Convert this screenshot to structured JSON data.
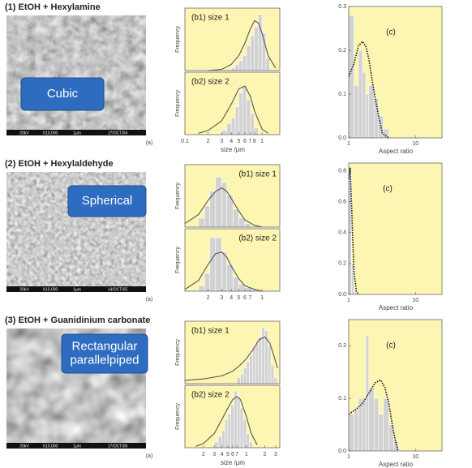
{
  "figure": {
    "bar_color": "#d2d2d2",
    "background": "#fdf6b3",
    "fit_color": "#555555",
    "label_color": "#2e6cc0",
    "rows": [
      {
        "heading": "(1) EtOH + Hexylamine",
        "image": {
          "label_lines": [
            "Cubic"
          ],
          "footer": [
            "20kV",
            "X10,000",
            "1μm",
            "17/OCT/04"
          ]
        },
        "tag": "(a)",
        "size": {
          "xlim": [
            0.1,
            1.7
          ],
          "x_label": "size /μm",
          "xticks": [
            0.1,
            {
              "value": 0.2,
              "label": "2"
            },
            {
              "value": 0.3,
              "label": "3"
            },
            {
              "value": 0.4,
              "label": "4"
            },
            {
              "value": 0.5,
              "label": "5"
            },
            {
              "value": 0.6,
              "label": "6"
            },
            {
              "value": 0.7,
              "label": "7"
            },
            {
              "value": 0.8,
              "label": "8"
            },
            1
          ],
          "y_label": "Frequency",
          "plots": [
            {
              "label": "(b1) size 1",
              "ylim": [
                0,
                0.5
              ],
              "bins": [
                0.4,
                0.45,
                0.5,
                0.56,
                0.63,
                0.71,
                0.79,
                0.89,
                1.0,
                1.12,
                1.26
              ],
              "counts": [
                0.02,
                0.05,
                0.08,
                0.12,
                0.2,
                0.28,
                0.35,
                0.45,
                0.3,
                0.1
              ],
              "fit": {
                "x": [
                  0.2,
                  0.3,
                  0.4,
                  0.5,
                  0.6,
                  0.7,
                  0.8,
                  0.9,
                  1.0,
                  1.2,
                  1.5
                ],
                "y": [
                  0,
                  0.01,
                  0.05,
                  0.12,
                  0.22,
                  0.33,
                  0.4,
                  0.38,
                  0.3,
                  0.12,
                  0.02
                ]
              }
            },
            {
              "label": "(b2) size 2",
              "ylim": [
                0,
                0.45
              ],
              "bins": [
                0.3,
                0.35,
                0.4,
                0.45,
                0.5,
                0.56,
                0.63,
                0.71,
                0.79,
                0.89
              ],
              "counts": [
                0.03,
                0.08,
                0.12,
                0.2,
                0.3,
                0.35,
                0.25,
                0.15,
                0.05
              ],
              "fit": {
                "x": [
                  0.15,
                  0.2,
                  0.3,
                  0.4,
                  0.5,
                  0.6,
                  0.7,
                  0.8,
                  1.0,
                  1.2
                ],
                "y": [
                  0.01,
                  0.03,
                  0.1,
                  0.22,
                  0.33,
                  0.35,
                  0.28,
                  0.17,
                  0.04,
                  0.01
                ]
              }
            }
          ]
        },
        "aspect": {
          "tag": "(c)",
          "x_label": "Aspect ratio",
          "xlim": [
            1,
            25
          ],
          "xticks": [
            1,
            10
          ],
          "ylim": [
            0,
            0.3
          ],
          "yticks": [
            {
              "value": 0,
              "label": "0.0"
            },
            0.1,
            0.2,
            0.3
          ],
          "bins": [
            1,
            1.2,
            1.4,
            1.6,
            1.8,
            2,
            2.4,
            2.8,
            3.3,
            4
          ],
          "counts": [
            0.28,
            0.12,
            0.2,
            0.15,
            0.1,
            0.12,
            0.09,
            0.05,
            0.02
          ],
          "fit": {
            "x": [
              1,
              1.2,
              1.4,
              1.6,
              1.8,
              2,
              2.2,
              2.5,
              2.8,
              3.2,
              4
            ],
            "y": [
              0.14,
              0.17,
              0.21,
              0.22,
              0.21,
              0.18,
              0.14,
              0.09,
              0.05,
              0.01,
              0
            ]
          }
        }
      },
      {
        "heading": "(2) EtOH + Hexylaldehyde",
        "image": {
          "label_lines": [
            "Spherical"
          ],
          "footer": [
            "20kV",
            "X10,000",
            "1μm",
            "14/OCT/05"
          ]
        },
        "tag": "(a)",
        "size": {
          "xlim": [
            0.1,
            1.7
          ],
          "xticks": [
            {
              "value": 0.2,
              "label": "2"
            },
            {
              "value": 0.3,
              "label": "3"
            },
            {
              "value": 0.4,
              "label": "4"
            },
            {
              "value": 0.5,
              "label": "5"
            },
            {
              "value": 0.6,
              "label": "6"
            },
            {
              "value": 0.7,
              "label": "7"
            },
            1
          ],
          "y_label": "Frequency",
          "plots": [
            {
              "label": "(b1) size 1",
              "ylim": [
                0,
                0.35
              ],
              "bins": [
                0.15,
                0.18,
                0.21,
                0.25,
                0.3,
                0.35,
                0.42,
                0.5,
                0.6,
                0.71
              ],
              "counts": [
                0.05,
                0.12,
                0.2,
                0.28,
                0.25,
                0.18,
                0.1,
                0.05,
                0.02
              ],
              "fit": {
                "x": [
                  0.1,
                  0.15,
                  0.2,
                  0.25,
                  0.3,
                  0.35,
                  0.4,
                  0.5,
                  0.6,
                  0.8,
                  1.0
                ],
                "y": [
                  0.02,
                  0.07,
                  0.15,
                  0.2,
                  0.22,
                  0.2,
                  0.16,
                  0.09,
                  0.04,
                  0.01,
                  0
                ]
              }
            },
            {
              "label": "(b2) size 2",
              "ylim": [
                0,
                0.35
              ],
              "bins": [
                0.15,
                0.18,
                0.21,
                0.25,
                0.3,
                0.35,
                0.42,
                0.5,
                0.6,
                0.71,
                0.85
              ],
              "counts": [
                0.03,
                0.1,
                0.3,
                0.3,
                0.22,
                0.15,
                0.08,
                0.04,
                0.02,
                0.01
              ],
              "fit": {
                "x": [
                  0.1,
                  0.15,
                  0.2,
                  0.25,
                  0.3,
                  0.35,
                  0.4,
                  0.5,
                  0.6,
                  0.8,
                  1.0
                ],
                "y": [
                  0.01,
                  0.06,
                  0.15,
                  0.21,
                  0.22,
                  0.19,
                  0.14,
                  0.07,
                  0.03,
                  0.01,
                  0
                ]
              }
            }
          ]
        },
        "aspect": {
          "tag": "(c)",
          "x_label": "Aspect ratio",
          "xlim": [
            1,
            25
          ],
          "xticks": [
            1,
            10
          ],
          "ylim": [
            0,
            0.85
          ],
          "yticks": [
            {
              "value": 0,
              "label": "0.0"
            },
            0.2,
            0.4,
            0.6,
            0.8
          ],
          "bins": [
            1,
            1.1,
            1.2,
            1.3
          ],
          "counts": [
            0.8,
            0.2,
            0.02
          ],
          "fit": {
            "x": [
              1,
              1.05,
              1.1,
              1.15,
              1.2,
              1.3,
              1.4
            ],
            "y": [
              0.75,
              0.82,
              0.6,
              0.35,
              0.15,
              0.02,
              0
            ]
          }
        }
      },
      {
        "heading": "(3) EtOH + Guanidinium carbonate",
        "image": {
          "label_lines": [
            "Rectangular",
            "parallelpiped"
          ],
          "footer": [
            "20kV",
            "X10,000",
            "1μm",
            "17/OCT/06"
          ]
        },
        "tag": "(a)",
        "size": {
          "xlim": [
            0.1,
            3.5
          ],
          "x_label": "size /μm",
          "xticks": [
            {
              "value": 0.2,
              "label": "2"
            },
            {
              "value": 0.3,
              "label": "3"
            },
            {
              "value": 0.4,
              "label": "4"
            },
            {
              "value": 0.5,
              "label": "5"
            },
            {
              "value": 0.6,
              "label": "6"
            },
            {
              "value": 0.7,
              "label": "7"
            },
            1,
            {
              "value": 2,
              "label": "2"
            },
            {
              "value": 3,
              "label": "3"
            }
          ],
          "y_label": "Frequency",
          "plots": [
            {
              "label": "(b1) size 1",
              "ylim": [
                0,
                0.2
              ],
              "bins": [
                0.7,
                0.8,
                0.9,
                1.0,
                1.12,
                1.26,
                1.41,
                1.58,
                1.78,
                2,
                2.24,
                2.51,
                2.82,
                3.16
              ],
              "counts": [
                0.02,
                0.03,
                0.05,
                0.07,
                0.09,
                0.12,
                0.13,
                0.15,
                0.18,
                0.17,
                0.12,
                0.06,
                0.02
              ],
              "fit": {
                "x": [
                  0.1,
                  0.2,
                  0.4,
                  0.6,
                  0.8,
                  1.0,
                  1.3,
                  1.6,
                  2.0,
                  2.4,
                  2.8,
                  3.2
                ],
                "y": [
                  0.01,
                  0.015,
                  0.025,
                  0.04,
                  0.06,
                  0.08,
                  0.11,
                  0.14,
                  0.15,
                  0.13,
                  0.09,
                  0.05
                ]
              }
            },
            {
              "label": "(b2) size 2",
              "ylim": [
                0,
                0.22
              ],
              "bins": [
                0.3,
                0.35,
                0.4,
                0.45,
                0.5,
                0.56,
                0.63,
                0.71,
                0.79,
                0.89,
                1.0,
                1.12,
                1.26
              ],
              "counts": [
                0.02,
                0.04,
                0.06,
                0.1,
                0.12,
                0.15,
                0.2,
                0.18,
                0.14,
                0.1,
                0.05,
                0.02
              ],
              "fit": {
                "x": [
                  0.15,
                  0.2,
                  0.3,
                  0.4,
                  0.5,
                  0.6,
                  0.7,
                  0.8,
                  1.0,
                  1.2,
                  1.5
                ],
                "y": [
                  0.005,
                  0.015,
                  0.05,
                  0.1,
                  0.14,
                  0.17,
                  0.18,
                  0.17,
                  0.11,
                  0.05,
                  0.01
                ]
              }
            }
          ]
        },
        "aspect": {
          "tag": "(c)",
          "x_label": "Aspect ratio",
          "xlim": [
            1,
            25
          ],
          "xticks": [
            1,
            10
          ],
          "ylim": [
            0,
            0.25
          ],
          "yticks": [
            {
              "value": 0,
              "label": "0.0"
            },
            0.1,
            0.2
          ],
          "bins": [
            1,
            1.2,
            1.4,
            1.6,
            1.8,
            2,
            2.4,
            2.8,
            3.3,
            4,
            4.7,
            5.5
          ],
          "counts": [
            0.07,
            0.08,
            0.1,
            0.1,
            0.22,
            0.12,
            0.1,
            0.07,
            0.1,
            0.05,
            0.02
          ],
          "fit": {
            "x": [
              1,
              1.3,
              1.6,
              2,
              2.5,
              3,
              3.5,
              4,
              4.5,
              5,
              5.5
            ],
            "y": [
              0.07,
              0.08,
              0.09,
              0.11,
              0.13,
              0.135,
              0.12,
              0.09,
              0.05,
              0.02,
              0
            ]
          }
        }
      }
    ]
  }
}
